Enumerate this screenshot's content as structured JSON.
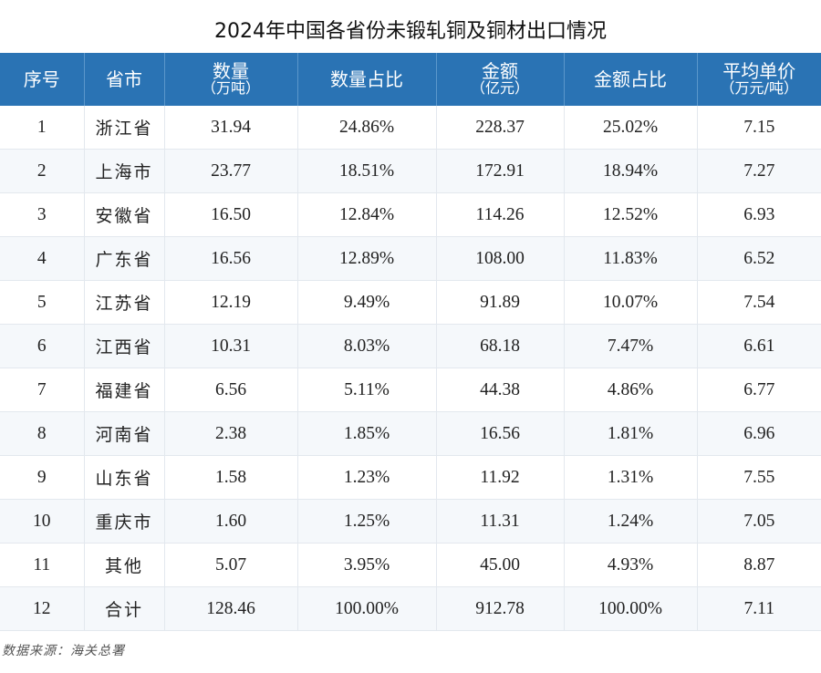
{
  "title": "2024年中国各省份未锻轧铜及铜材出口情况",
  "headers": [
    {
      "main": "序号",
      "sub": ""
    },
    {
      "main": "省市",
      "sub": ""
    },
    {
      "main": "数量",
      "sub": "（万吨）"
    },
    {
      "main": "数量占比",
      "sub": ""
    },
    {
      "main": "金额",
      "sub": "（亿元）"
    },
    {
      "main": "金额占比",
      "sub": ""
    },
    {
      "main": "平均单价",
      "sub": "（万元/吨）"
    }
  ],
  "rows": [
    {
      "no": "1",
      "province": "浙江省",
      "qty": "31.94",
      "qty_share": "24.86%",
      "amount": "228.37",
      "amount_share": "25.02%",
      "unit_price": "7.15"
    },
    {
      "no": "2",
      "province": "上海市",
      "qty": "23.77",
      "qty_share": "18.51%",
      "amount": "172.91",
      "amount_share": "18.94%",
      "unit_price": "7.27"
    },
    {
      "no": "3",
      "province": "安徽省",
      "qty": "16.50",
      "qty_share": "12.84%",
      "amount": "114.26",
      "amount_share": "12.52%",
      "unit_price": "6.93"
    },
    {
      "no": "4",
      "province": "广东省",
      "qty": "16.56",
      "qty_share": "12.89%",
      "amount": "108.00",
      "amount_share": "11.83%",
      "unit_price": "6.52"
    },
    {
      "no": "5",
      "province": "江苏省",
      "qty": "12.19",
      "qty_share": "9.49%",
      "amount": "91.89",
      "amount_share": "10.07%",
      "unit_price": "7.54"
    },
    {
      "no": "6",
      "province": "江西省",
      "qty": "10.31",
      "qty_share": "8.03%",
      "amount": "68.18",
      "amount_share": "7.47%",
      "unit_price": "6.61"
    },
    {
      "no": "7",
      "province": "福建省",
      "qty": "6.56",
      "qty_share": "5.11%",
      "amount": "44.38",
      "amount_share": "4.86%",
      "unit_price": "6.77"
    },
    {
      "no": "8",
      "province": "河南省",
      "qty": "2.38",
      "qty_share": "1.85%",
      "amount": "16.56",
      "amount_share": "1.81%",
      "unit_price": "6.96"
    },
    {
      "no": "9",
      "province": "山东省",
      "qty": "1.58",
      "qty_share": "1.23%",
      "amount": "11.92",
      "amount_share": "1.31%",
      "unit_price": "7.55"
    },
    {
      "no": "10",
      "province": "重庆市",
      "qty": "1.60",
      "qty_share": "1.25%",
      "amount": "11.31",
      "amount_share": "1.24%",
      "unit_price": "7.05"
    },
    {
      "no": "11",
      "province": "其他",
      "qty": "5.07",
      "qty_share": "3.95%",
      "amount": "45.00",
      "amount_share": "4.93%",
      "unit_price": "8.87"
    },
    {
      "no": "12",
      "province": "合计",
      "qty": "128.46",
      "qty_share": "100.00%",
      "amount": "912.78",
      "amount_share": "100.00%",
      "unit_price": "7.11"
    }
  ],
  "source": "数据来源：海关总署",
  "colors": {
    "header_bg": "#2a73b4",
    "header_text": "#ffffff",
    "stripe_bg": "#f5f8fb"
  }
}
